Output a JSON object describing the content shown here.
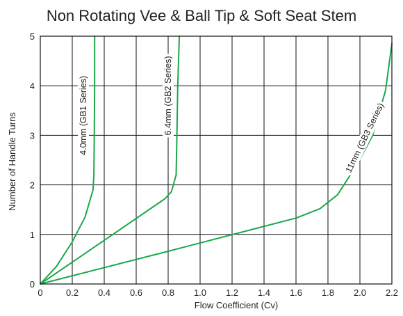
{
  "chart_data": {
    "type": "line",
    "title": "Non Rotating Vee & Ball Tip & Soft Seat Stem",
    "xlabel": "Flow Coefficient (Cv)",
    "ylabel": "Number of Handle Turns",
    "xlim": [
      0,
      2.2
    ],
    "ylim": [
      0,
      5
    ],
    "x_ticks": [
      "0",
      "0.2",
      "0.4",
      "0.6",
      "0.8",
      "1.0",
      "1.2",
      "1.4",
      "1.6",
      "1.8",
      "2.0",
      "2.2"
    ],
    "y_ticks": [
      "0",
      "1",
      "2",
      "3",
      "4",
      "5"
    ],
    "grid": true,
    "line_color": "#1aa84a",
    "series": [
      {
        "name": "4.0mm (GB1 Series)",
        "points": [
          [
            0,
            0
          ],
          [
            0.1,
            0.35
          ],
          [
            0.2,
            0.85
          ],
          [
            0.28,
            1.35
          ],
          [
            0.33,
            1.9
          ],
          [
            0.335,
            2.2
          ],
          [
            0.338,
            3.0
          ],
          [
            0.34,
            4.0
          ],
          [
            0.34,
            5.0
          ]
        ]
      },
      {
        "name": "6.4mm (GB2 Series)",
        "points": [
          [
            0,
            0
          ],
          [
            0.4,
            0.88
          ],
          [
            0.78,
            1.72
          ],
          [
            0.82,
            1.86
          ],
          [
            0.85,
            2.2
          ],
          [
            0.855,
            3.0
          ],
          [
            0.86,
            4.0
          ],
          [
            0.87,
            5.0
          ]
        ]
      },
      {
        "name": "11mm (GB3 Series)",
        "points": [
          [
            0,
            0
          ],
          [
            0.8,
            0.66
          ],
          [
            1.6,
            1.33
          ],
          [
            1.75,
            1.52
          ],
          [
            1.86,
            1.8
          ],
          [
            1.98,
            2.4
          ],
          [
            2.08,
            3.0
          ],
          [
            2.16,
            3.9
          ],
          [
            2.2,
            4.85
          ]
        ]
      }
    ]
  }
}
